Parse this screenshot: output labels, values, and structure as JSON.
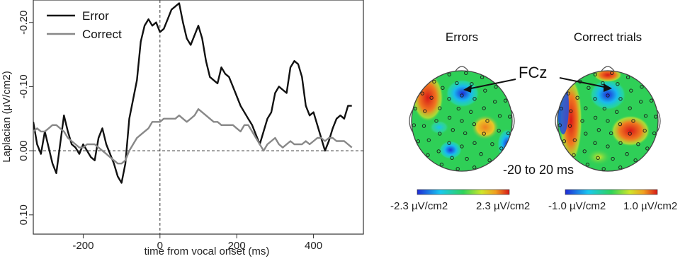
{
  "chart_data": [
    {
      "type": "line",
      "title": "",
      "xlabel": "time from vocal onset (ms)",
      "ylabel": "Laplacian (µV/cm2)",
      "xlim": [
        -330,
        530
      ],
      "ylim": [
        0.13,
        -0.235
      ],
      "y_axis_inverted": true,
      "xticks": [
        -200,
        0,
        200,
        400
      ],
      "yticks": [
        -0.2,
        -0.1,
        0.0,
        0.1
      ],
      "xtick_labels": [
        "-200",
        "0",
        "200",
        "400"
      ],
      "ytick_labels": [
        "-0.20",
        "-0.10",
        "0.00",
        "0.10"
      ],
      "reference_lines": {
        "x": 0,
        "y": 0
      },
      "legend_position": "top-left",
      "series": [
        {
          "name": "Error",
          "color": "#111111",
          "x": [
            -330,
            -320,
            -310,
            -300,
            -290,
            -280,
            -270,
            -260,
            -250,
            -240,
            -230,
            -220,
            -210,
            -200,
            -190,
            -180,
            -170,
            -160,
            -150,
            -140,
            -130,
            -120,
            -110,
            -100,
            -90,
            -80,
            -70,
            -60,
            -50,
            -40,
            -30,
            -20,
            -10,
            0,
            10,
            20,
            30,
            40,
            50,
            60,
            70,
            80,
            90,
            100,
            110,
            120,
            130,
            140,
            150,
            160,
            170,
            180,
            190,
            200,
            210,
            220,
            230,
            240,
            250,
            260,
            270,
            280,
            290,
            300,
            310,
            320,
            330,
            340,
            350,
            360,
            370,
            380,
            390,
            400,
            410,
            420,
            430,
            440,
            450,
            460,
            470,
            480,
            490,
            500
          ],
          "y": [
            -0.045,
            -0.01,
            0.005,
            -0.03,
            -0.005,
            0.02,
            0.035,
            -0.01,
            -0.055,
            -0.03,
            -0.01,
            -0.005,
            0.005,
            -0.01,
            0.0,
            0.01,
            0.015,
            -0.02,
            -0.035,
            -0.01,
            0.005,
            0.02,
            0.04,
            0.05,
            0.02,
            -0.05,
            -0.08,
            -0.11,
            -0.17,
            -0.195,
            -0.205,
            -0.195,
            -0.2,
            -0.185,
            -0.19,
            -0.205,
            -0.22,
            -0.225,
            -0.23,
            -0.2,
            -0.175,
            -0.165,
            -0.18,
            -0.195,
            -0.175,
            -0.14,
            -0.115,
            -0.11,
            -0.105,
            -0.13,
            -0.12,
            -0.115,
            -0.1,
            -0.085,
            -0.07,
            -0.06,
            -0.05,
            -0.04,
            -0.025,
            -0.01,
            -0.03,
            -0.05,
            -0.06,
            -0.09,
            -0.1,
            -0.095,
            -0.09,
            -0.13,
            -0.14,
            -0.135,
            -0.115,
            -0.07,
            -0.055,
            -0.06,
            -0.04,
            -0.02,
            0.0,
            -0.015,
            -0.035,
            -0.05,
            -0.055,
            -0.05,
            -0.07,
            -0.07
          ]
        },
        {
          "name": "Correct",
          "color": "#888888",
          "x": [
            -330,
            -320,
            -310,
            -300,
            -290,
            -280,
            -270,
            -260,
            -250,
            -240,
            -230,
            -220,
            -210,
            -200,
            -190,
            -180,
            -170,
            -160,
            -150,
            -140,
            -130,
            -120,
            -110,
            -100,
            -90,
            -80,
            -70,
            -60,
            -50,
            -40,
            -30,
            -20,
            -10,
            0,
            10,
            20,
            30,
            40,
            50,
            60,
            70,
            80,
            90,
            100,
            110,
            120,
            130,
            140,
            150,
            160,
            170,
            180,
            190,
            200,
            210,
            220,
            230,
            240,
            250,
            260,
            270,
            280,
            290,
            300,
            310,
            320,
            330,
            340,
            350,
            360,
            370,
            380,
            390,
            400,
            410,
            420,
            430,
            440,
            450,
            460,
            470,
            480,
            490,
            500
          ],
          "y": [
            -0.03,
            -0.035,
            -0.03,
            -0.03,
            -0.035,
            -0.04,
            -0.04,
            -0.035,
            -0.03,
            -0.02,
            -0.015,
            -0.01,
            -0.005,
            -0.005,
            -0.01,
            -0.01,
            -0.01,
            -0.005,
            0.0,
            0.005,
            0.01,
            0.015,
            0.02,
            0.02,
            0.015,
            0.0,
            -0.01,
            -0.02,
            -0.025,
            -0.03,
            -0.035,
            -0.045,
            -0.045,
            -0.045,
            -0.05,
            -0.05,
            -0.05,
            -0.05,
            -0.055,
            -0.05,
            -0.045,
            -0.05,
            -0.055,
            -0.065,
            -0.06,
            -0.055,
            -0.05,
            -0.045,
            -0.045,
            -0.04,
            -0.04,
            -0.04,
            -0.04,
            -0.035,
            -0.03,
            -0.04,
            -0.04,
            -0.03,
            -0.02,
            -0.01,
            0.0,
            -0.01,
            -0.015,
            -0.02,
            -0.01,
            -0.005,
            -0.01,
            -0.015,
            -0.01,
            -0.01,
            -0.01,
            -0.015,
            -0.01,
            -0.015,
            -0.02,
            -0.02,
            -0.015,
            -0.02,
            -0.02,
            -0.015,
            -0.015,
            -0.015,
            -0.01,
            -0.005
          ]
        }
      ]
    },
    {
      "type": "heatmap",
      "title": "Errors",
      "colormap": [
        "#1f2bd6",
        "#19c8f0",
        "#2fd35a",
        "#cfe62a",
        "#f0a020",
        "#d81818"
      ],
      "scale_min_label": "-2.3 µV/cm2",
      "scale_max_label": "2.3 µV/cm2"
    },
    {
      "type": "heatmap",
      "title": "Correct trials",
      "colormap": [
        "#1f2bd6",
        "#19c8f0",
        "#2fd35a",
        "#cfe62a",
        "#f0a020",
        "#d81818"
      ],
      "scale_min_label": "-1.0 µV/cm2",
      "scale_max_label": "1.0 µV/cm2"
    }
  ],
  "annotations": {
    "electrode_label": "FCz",
    "time_window": "-20 to 20 ms"
  },
  "colors": {
    "map_background": "#2fcf57",
    "electrode_dot": "#1a1a1a"
  }
}
